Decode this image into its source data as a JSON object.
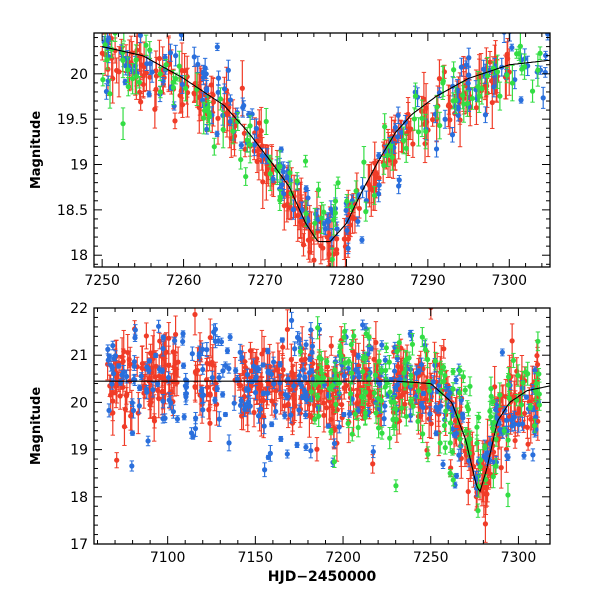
{
  "chart_data": [
    {
      "type": "scatter",
      "title": "",
      "xlabel": "",
      "ylabel": "Magnitude",
      "xlim": [
        7249,
        7305
      ],
      "ylim": [
        20.45,
        17.87
      ],
      "x_ticks": [
        7250,
        7260,
        7270,
        7280,
        7290,
        7300
      ],
      "y_ticks": [
        18,
        18.5,
        19,
        19.5,
        20
      ],
      "model": {
        "name": "fit",
        "color": "#000000",
        "x": [
          7250,
          7255,
          7260,
          7265,
          7268,
          7271,
          7273,
          7275,
          7276.5,
          7278,
          7280,
          7282,
          7284,
          7286,
          7288,
          7291,
          7295,
          7300,
          7305
        ],
        "y": [
          20.3,
          20.2,
          19.95,
          19.65,
          19.35,
          19.0,
          18.75,
          18.35,
          18.15,
          18.15,
          18.35,
          18.72,
          19.05,
          19.35,
          19.55,
          19.75,
          19.95,
          20.1,
          20.15
        ]
      },
      "series": [
        {
          "name": "red",
          "color": "#f03c28",
          "anchors": [
            [
              7250,
              20.15
            ],
            [
              7256,
              20.05
            ],
            [
              7260,
              19.9
            ],
            [
              7264,
              19.65
            ],
            [
              7268,
              19.3
            ],
            [
              7271,
              18.95
            ],
            [
              7274,
              18.5
            ],
            [
              7276,
              18.2
            ],
            [
              7278,
              18.15
            ],
            [
              7280,
              18.3
            ],
            [
              7282,
              18.6
            ],
            [
              7284,
              18.95
            ],
            [
              7286,
              19.25
            ],
            [
              7289,
              19.5
            ],
            [
              7293,
              19.7
            ],
            [
              7297,
              19.9
            ],
            [
              7300,
              20.1
            ],
            [
              7305,
              20.2
            ]
          ],
          "x_range": [
            7250,
            7300
          ],
          "count": 260,
          "scatter": 0.12,
          "errbar": 0.18,
          "seed": 11
        },
        {
          "name": "blue",
          "color": "#2a6fdc",
          "anchors": [
            [
              7250,
              20.2
            ],
            [
              7255,
              20.05
            ],
            [
              7260,
              19.95
            ],
            [
              7265,
              19.7
            ],
            [
              7270,
              19.15
            ],
            [
              7273,
              18.75
            ],
            [
              7275,
              18.5
            ],
            [
              7278,
              18.3
            ],
            [
              7281,
              18.5
            ],
            [
              7284,
              18.9
            ],
            [
              7287,
              19.3
            ],
            [
              7290,
              19.6
            ],
            [
              7295,
              19.9
            ],
            [
              7300,
              20.05
            ],
            [
              7305,
              20.2
            ]
          ],
          "x_range": [
            7250,
            7305
          ],
          "count": 170,
          "scatter": 0.18,
          "errbar": 0.07,
          "seed": 23
        },
        {
          "name": "green",
          "color": "#33dd44",
          "anchors": [
            [
              7250,
              20.2
            ],
            [
              7255,
              20.0
            ],
            [
              7260,
              19.9
            ],
            [
              7270,
              19.2
            ],
            [
              7278,
              18.3
            ],
            [
              7282,
              18.6
            ],
            [
              7285,
              19.0
            ],
            [
              7288,
              19.4
            ],
            [
              7292,
              19.7
            ],
            [
              7300,
              20.0
            ],
            [
              7305,
              20.2
            ]
          ],
          "x_range": [
            7250,
            7305
          ],
          "count": 110,
          "scatter": 0.2,
          "errbar": 0.12,
          "seed": 37
        }
      ]
    },
    {
      "type": "scatter",
      "title": "",
      "xlabel": "HJD−2450000",
      "ylabel": "Magnitude",
      "xlim": [
        7058,
        7318
      ],
      "ylim": [
        22,
        17
      ],
      "x_ticks": [
        7100,
        7150,
        7200,
        7250,
        7300
      ],
      "y_ticks": [
        17,
        18,
        19,
        20,
        21,
        22
      ],
      "model": {
        "name": "fit",
        "color": "#000000",
        "x": [
          7058,
          7230,
          7250,
          7262,
          7270,
          7276,
          7278,
          7282,
          7288,
          7295,
          7305,
          7318
        ],
        "y": [
          20.45,
          20.45,
          20.4,
          20.0,
          19.2,
          18.25,
          18.1,
          18.6,
          19.6,
          20.0,
          20.25,
          20.35
        ]
      },
      "series": [
        {
          "name": "red",
          "color": "#f03c28",
          "anchors": [
            [
              7065,
              20.5
            ],
            [
              7100,
              20.5
            ],
            [
              7150,
              20.4
            ],
            [
              7200,
              20.3
            ],
            [
              7250,
              20.35
            ],
            [
              7262,
              19.9
            ],
            [
              7270,
              19.0
            ],
            [
              7276,
              18.2
            ],
            [
              7282,
              18.7
            ],
            [
              7290,
              19.7
            ],
            [
              7300,
              20.0
            ],
            [
              7312,
              20.2
            ]
          ],
          "x_range": [
            7065,
            7312
          ],
          "count": 520,
          "scatter": 0.4,
          "errbar": 0.3,
          "seed": 51,
          "gaps": [
            [
              7106,
              7115
            ],
            [
              7128,
              7138
            ],
            [
              7222,
              7228
            ]
          ]
        },
        {
          "name": "blue",
          "color": "#2a6fdc",
          "anchors": [
            [
              7065,
              20.5
            ],
            [
              7150,
              20.45
            ],
            [
              7250,
              20.35
            ],
            [
              7270,
              19.3
            ],
            [
              7278,
              18.5
            ],
            [
              7290,
              19.6
            ],
            [
              7300,
              20.0
            ],
            [
              7312,
              20.3
            ]
          ],
          "x_range": [
            7065,
            7312
          ],
          "count": 330,
          "scatter": 0.55,
          "errbar": 0.1,
          "seed": 63
        },
        {
          "name": "green",
          "color": "#33dd44",
          "anchors": [
            [
              7175,
              20.4
            ],
            [
              7250,
              20.3
            ],
            [
              7270,
              19.5
            ],
            [
              7278,
              18.7
            ],
            [
              7290,
              19.8
            ],
            [
              7312,
              20.5
            ]
          ],
          "x_range": [
            7175,
            7312
          ],
          "count": 170,
          "scatter": 0.55,
          "errbar": 0.15,
          "seed": 79
        }
      ]
    }
  ]
}
